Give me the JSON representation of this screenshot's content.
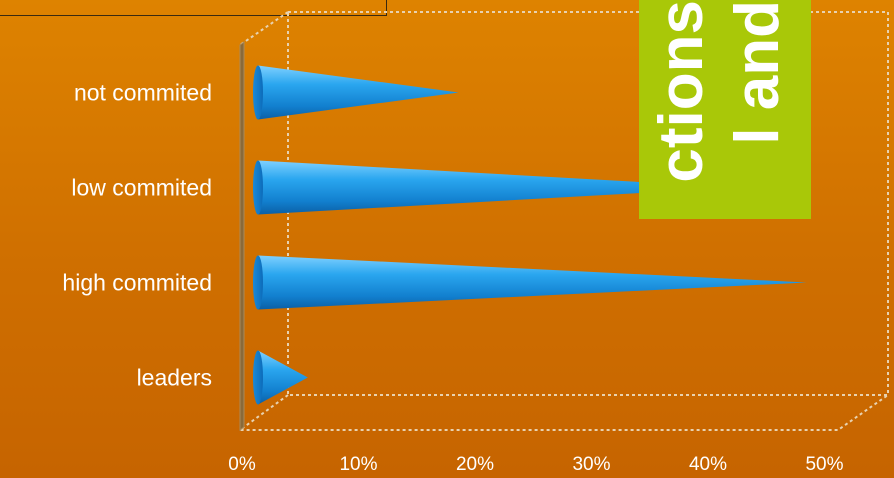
{
  "slide_title": {
    "line1": "l and",
    "line2": "ctions"
  },
  "colors": {
    "background": "#d97a00",
    "cone": "#1e9ee8",
    "title_panel": "#a9c808"
  },
  "chart_data": {
    "type": "bar",
    "orientation": "horizontal",
    "bar_shape": "cone",
    "categories": [
      "not commited",
      "low commited",
      "high commited",
      "leaders"
    ],
    "values": [
      0.16,
      0.4,
      0.46,
      0.03
    ],
    "xlim": [
      0,
      0.5
    ],
    "x_ticks": [
      "0%",
      "10%",
      "20%",
      "30%",
      "40%",
      "50%"
    ],
    "grid": false,
    "legend": "none"
  }
}
